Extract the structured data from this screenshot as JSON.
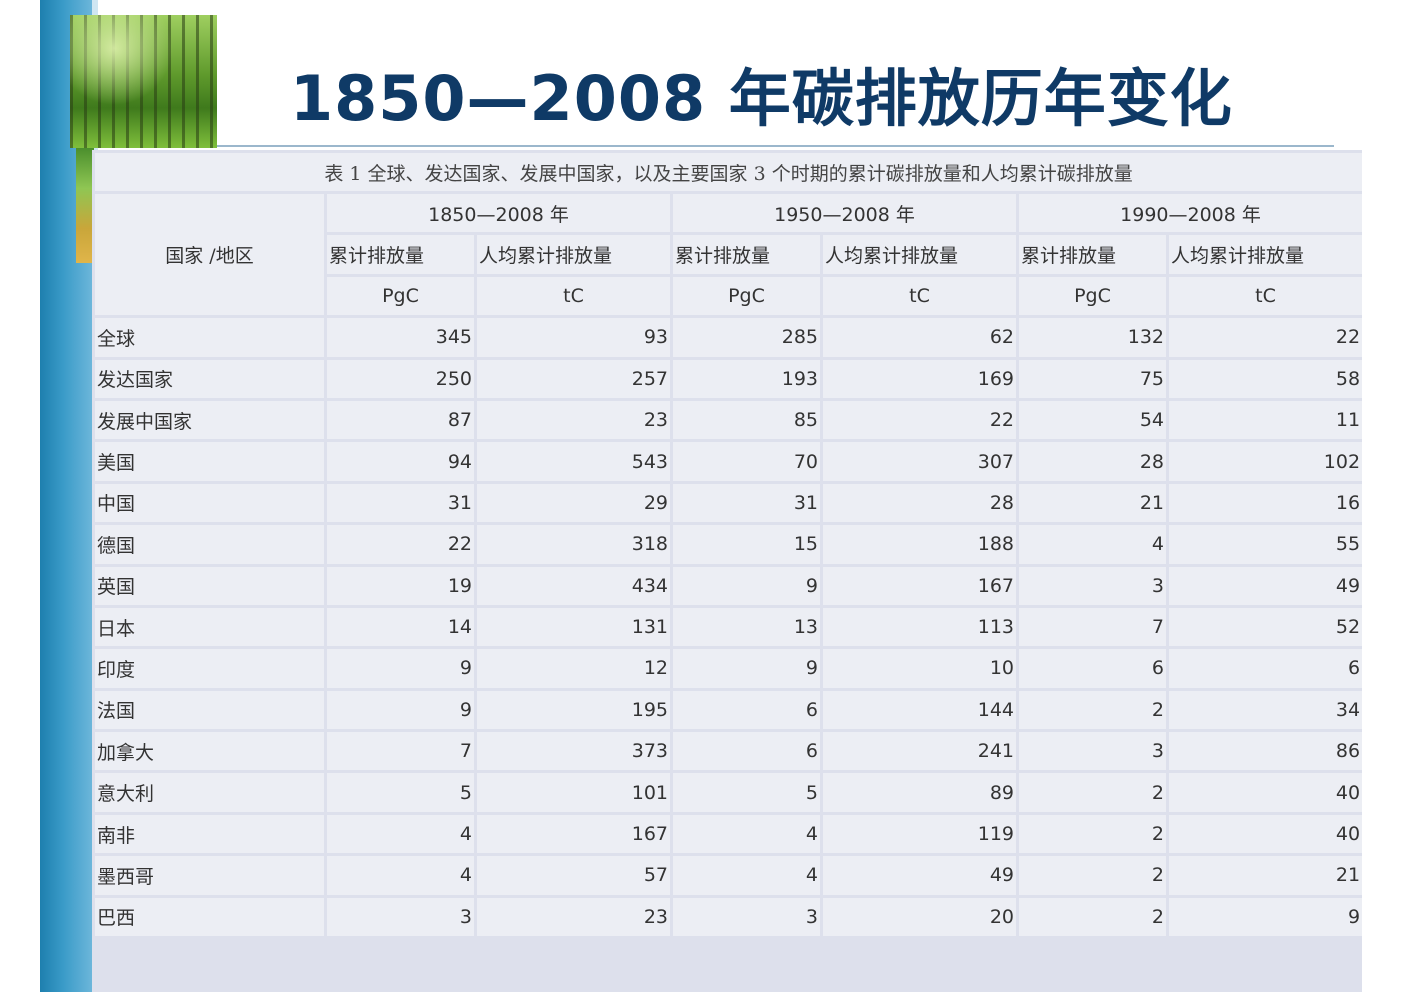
{
  "slide": {
    "title": "1850—2008 年碳排放历年变化"
  },
  "table": {
    "caption": "表 1 全球、发达国家、发展中国家，以及主要国家 3 个时期的累计碳排放量和人均累计碳排放量",
    "region_header": "国家 /地区",
    "periods": [
      "1850—2008 年",
      "1950—2008 年",
      "1990—2008 年"
    ],
    "sub_headers": [
      "累计排放量",
      "人均累计排放量",
      "累计排放量",
      "人均累计排放量",
      "累计排放量",
      "人均累计排放量"
    ],
    "units": [
      "PgC",
      "tC",
      "PgC",
      "tC",
      "PgC",
      "tC"
    ],
    "rows": [
      {
        "name": "全球",
        "values": [
          "345",
          "93",
          "285",
          "62",
          "132",
          "22"
        ]
      },
      {
        "name": "发达国家",
        "values": [
          "250",
          "257",
          "193",
          "169",
          "75",
          "58"
        ]
      },
      {
        "name": "发展中国家",
        "values": [
          "87",
          "23",
          "85",
          "22",
          "54",
          "11"
        ]
      },
      {
        "name": "美国",
        "values": [
          "94",
          "543",
          "70",
          "307",
          "28",
          "102"
        ]
      },
      {
        "name": "中国",
        "values": [
          "31",
          "29",
          "31",
          "28",
          "21",
          "16"
        ]
      },
      {
        "name": "德国",
        "values": [
          "22",
          "318",
          "15",
          "188",
          "4",
          "55"
        ]
      },
      {
        "name": "英国",
        "values": [
          "19",
          "434",
          "9",
          "167",
          "3",
          "49"
        ]
      },
      {
        "name": "日本",
        "values": [
          "14",
          "131",
          "13",
          "113",
          "7",
          "52"
        ]
      },
      {
        "name": "印度",
        "values": [
          "9",
          "12",
          "9",
          "10",
          "6",
          "6"
        ]
      },
      {
        "name": "法国",
        "values": [
          "9",
          "195",
          "6",
          "144",
          "2",
          "34"
        ]
      },
      {
        "name": "加拿大",
        "values": [
          "7",
          "373",
          "6",
          "241",
          "3",
          "86"
        ]
      },
      {
        "name": "意大利",
        "values": [
          "5",
          "101",
          "5",
          "89",
          "2",
          "40"
        ]
      },
      {
        "name": "南非",
        "values": [
          "4",
          "167",
          "4",
          "119",
          "2",
          "40"
        ]
      },
      {
        "name": "墨西哥",
        "values": [
          "4",
          "57",
          "4",
          "49",
          "2",
          "21"
        ]
      },
      {
        "name": "巴西",
        "values": [
          "3",
          "23",
          "3",
          "20",
          "2",
          "9"
        ]
      }
    ]
  }
}
